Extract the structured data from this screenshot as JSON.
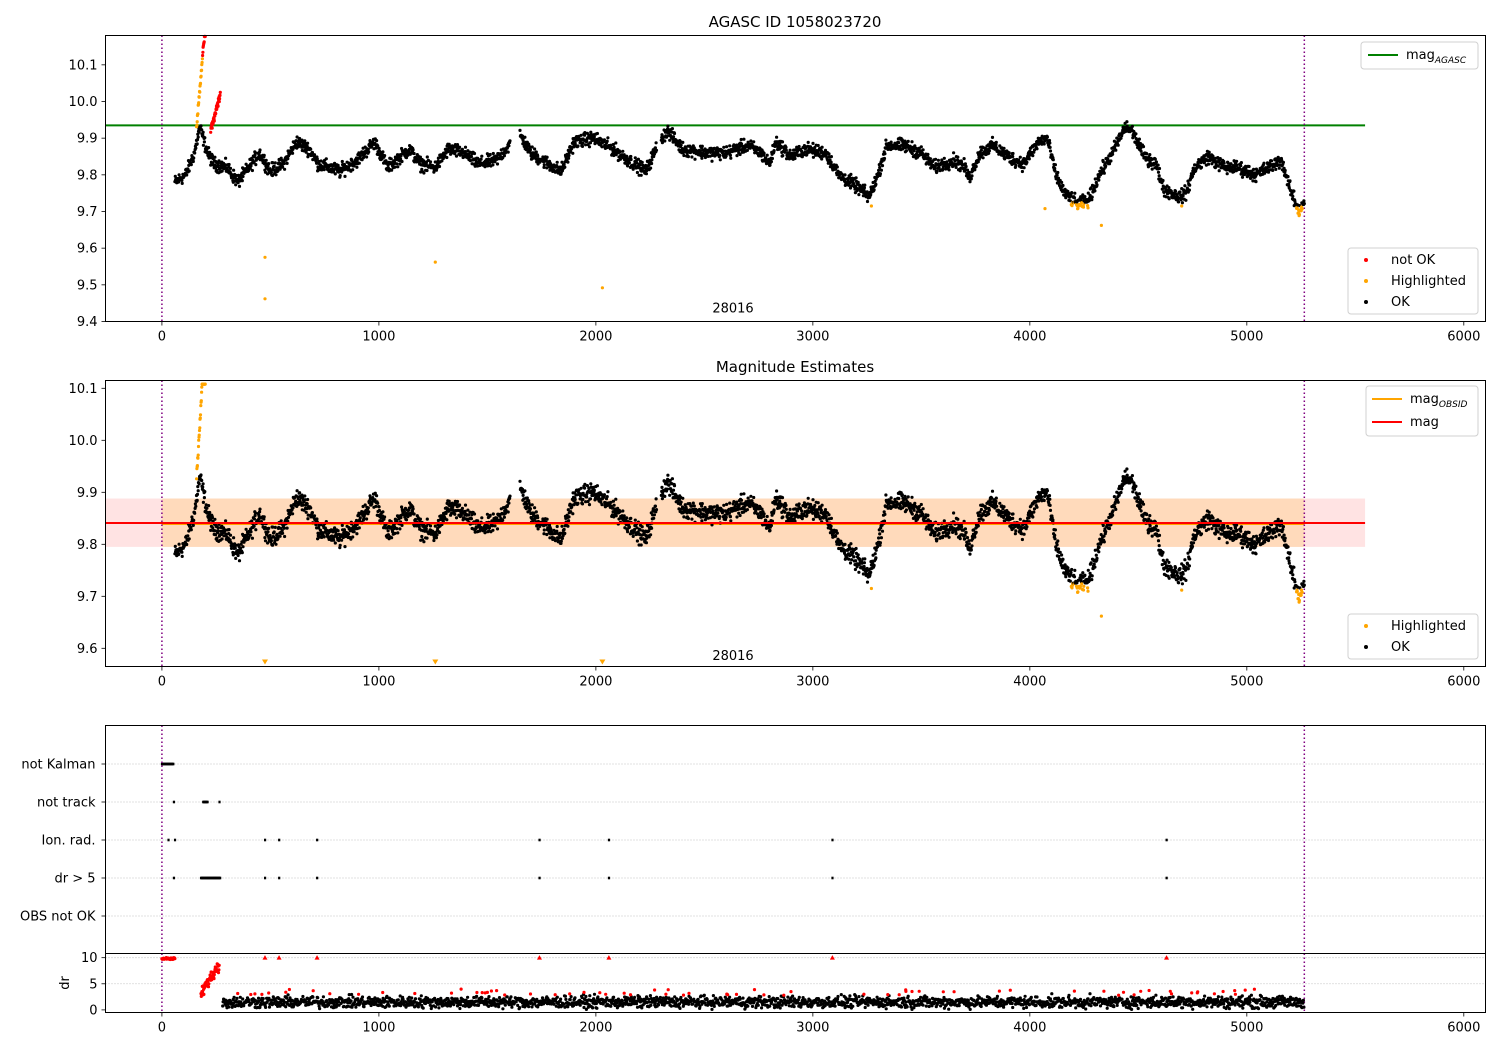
{
  "chart_data": [
    {
      "type": "scatter",
      "title": "AGASC ID 1058023720",
      "xlim": [
        -260,
        6100
      ],
      "ylim": [
        9.4,
        10.18
      ],
      "xticks": [
        0,
        1000,
        2000,
        3000,
        4000,
        5000,
        6000
      ],
      "xtick_labels": [
        "0",
        "1000",
        "2000",
        "3000",
        "4000",
        "5000",
        "6000"
      ],
      "yticks": [
        9.4,
        9.5,
        9.6,
        9.7,
        9.8,
        9.9,
        10.0,
        10.1
      ],
      "ytick_labels": [
        "9.4",
        "9.5",
        "9.6",
        "9.7",
        "9.8",
        "9.9",
        "10.0",
        "10.1"
      ],
      "vlines": [
        0,
        5265
      ],
      "obsid_label": {
        "text": "28016",
        "x": 2632,
        "y": 9.435
      },
      "mag_agasc": {
        "value": 9.935,
        "xrange": [
          -260,
          5545
        ],
        "color": "#008000"
      },
      "legend_line": {
        "base": "mag",
        "sub": "AGASC",
        "color": "#008000",
        "loc": "upper right"
      },
      "legend_points": [
        {
          "label": "not OK",
          "color": "#ff0000"
        },
        {
          "label": "Highlighted",
          "color": "#ffa500"
        },
        {
          "label": "OK",
          "color": "#000000"
        }
      ],
      "legend_points_loc": "lower right",
      "outliers": [
        {
          "x": 475,
          "y": 9.575
        },
        {
          "x": 475,
          "y": 9.462
        },
        {
          "x": 1260,
          "y": 9.562
        },
        {
          "x": 2030,
          "y": 9.492
        },
        {
          "x": 3270,
          "y": 9.715
        },
        {
          "x": 4330,
          "y": 9.662
        },
        {
          "x": 4070,
          "y": 9.708
        },
        {
          "x": 4700,
          "y": 9.715
        }
      ]
    },
    {
      "type": "scatter",
      "title": "Magnitude Estimates",
      "xlim": [
        -260,
        6100
      ],
      "ylim": [
        9.565,
        10.115
      ],
      "xticks": [
        0,
        1000,
        2000,
        3000,
        4000,
        5000,
        6000
      ],
      "xtick_labels": [
        "0",
        "1000",
        "2000",
        "3000",
        "4000",
        "5000",
        "6000"
      ],
      "yticks": [
        9.6,
        9.7,
        9.8,
        9.9,
        10.0,
        10.1
      ],
      "ytick_labels": [
        "9.6",
        "9.7",
        "9.8",
        "9.9",
        "10.0",
        "10.1"
      ],
      "vlines": [
        0,
        5265
      ],
      "obsid_label": {
        "text": "28016",
        "x": 2632,
        "y": 9.585
      },
      "mag": {
        "value": 9.841,
        "xrange": [
          -260,
          5545
        ],
        "color": "#ff0000"
      },
      "mag_obsid": {
        "value": 9.839,
        "xrange": [
          0,
          5265
        ],
        "color": "#ffa500"
      },
      "band_outer": {
        "range": [
          9.795,
          9.888
        ],
        "xrange": [
          -260,
          5545
        ],
        "color": "#ffcccc"
      },
      "band_inner": {
        "range": [
          9.795,
          9.888
        ],
        "xrange": [
          0,
          5265
        ],
        "color": "#ffd7b0"
      },
      "legend_lines": [
        {
          "base": "mag",
          "sub": "OBSID",
          "color": "#ffa500"
        },
        {
          "base": "mag",
          "sub": "",
          "color": "#ff0000"
        }
      ],
      "legend_lines_loc": "upper right",
      "legend_points": [
        {
          "label": "Highlighted",
          "color": "#ffa500"
        },
        {
          "label": "OK",
          "color": "#000000"
        }
      ],
      "legend_points_loc": "lower right",
      "lower_markers": [
        475,
        1260,
        2030
      ],
      "outliers": [
        {
          "x": 3270,
          "y": 9.715
        },
        {
          "x": 4330,
          "y": 9.662
        },
        {
          "x": 4700,
          "y": 9.712
        }
      ]
    },
    {
      "type": "scatter",
      "title": "",
      "xlim": [
        -260,
        6100
      ],
      "categories": [
        "not Kalman",
        "not track",
        "Ion. rad.",
        "dr > 5",
        "OBS not OK"
      ],
      "flags": {
        "not Kalman": [
          [
            0,
            55
          ]
        ],
        "not track": [
          [
            55,
            55
          ],
          [
            190,
            210
          ],
          [
            265,
            265
          ]
        ],
        "Ion. rad.": [
          [
            30,
            30
          ],
          [
            60,
            60
          ],
          [
            475,
            475
          ],
          [
            540,
            540
          ],
          [
            715,
            715
          ],
          [
            1740,
            1740
          ],
          [
            2060,
            2060
          ],
          [
            3090,
            3090
          ],
          [
            4630,
            4630
          ]
        ],
        "dr > 5": [
          [
            55,
            55
          ],
          [
            180,
            270
          ],
          [
            475,
            475
          ],
          [
            540,
            540
          ],
          [
            715,
            715
          ],
          [
            1740,
            1740
          ],
          [
            2060,
            2060
          ],
          [
            3090,
            3090
          ],
          [
            4630,
            4630
          ]
        ],
        "OBS not OK": []
      },
      "vlines": [
        0,
        5265
      ]
    },
    {
      "type": "scatter",
      "title": "",
      "ylabel": "dr",
      "xlim": [
        -260,
        6100
      ],
      "ylim": [
        -0.5,
        10.8
      ],
      "xticks": [
        0,
        1000,
        2000,
        3000,
        4000,
        5000,
        6000
      ],
      "xtick_labels": [
        "0",
        "1000",
        "2000",
        "3000",
        "4000",
        "5000",
        "6000"
      ],
      "yticks": [
        0,
        5,
        10
      ],
      "ytick_labels": [
        "0",
        "5",
        "10"
      ],
      "vlines": [
        0,
        5265
      ],
      "high_points_x": [
        475,
        540,
        715,
        1740,
        2060,
        3090,
        4630
      ]
    }
  ]
}
